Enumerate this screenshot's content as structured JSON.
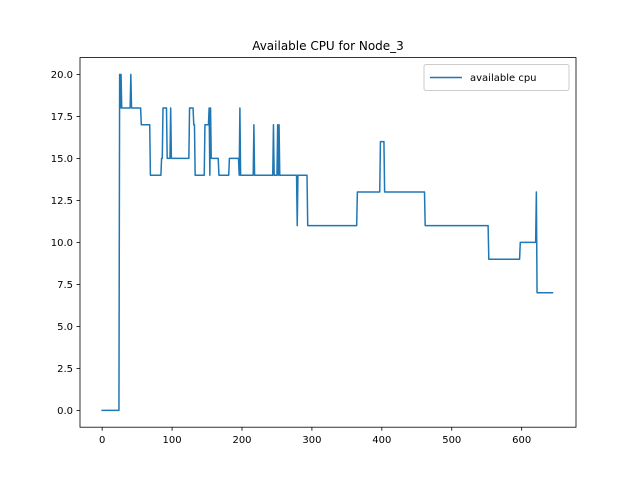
{
  "chart_data": {
    "type": "line",
    "title": "Available CPU for Node_3",
    "xlabel": "",
    "ylabel": "",
    "xlim": [
      -31.7,
      677.7
    ],
    "ylim": [
      -1.0,
      21.0
    ],
    "xticks": [
      0,
      100,
      200,
      300,
      400,
      500,
      600
    ],
    "yticks": [
      0.0,
      2.5,
      5.0,
      7.5,
      10.0,
      12.5,
      15.0,
      17.5,
      20.0
    ],
    "xtick_labels": [
      "0",
      "100",
      "200",
      "300",
      "400",
      "500",
      "600"
    ],
    "ytick_labels": [
      "0.0",
      "2.5",
      "5.0",
      "7.5",
      "10.0",
      "12.5",
      "15.0",
      "17.5",
      "20.0"
    ],
    "grid": false,
    "legend_position": "top-right",
    "series": [
      {
        "name": "available cpu",
        "color": "#1f77b4",
        "x": [
          0,
          24,
          25,
          26,
          27,
          28,
          40,
          41,
          42,
          55,
          56,
          68,
          69,
          75,
          76,
          84,
          85,
          86,
          87,
          92,
          93,
          94,
          97,
          98,
          99,
          100,
          124,
          125,
          130,
          131,
          132,
          133,
          134,
          135,
          146,
          147,
          152,
          153,
          154,
          155,
          156,
          157,
          166,
          167,
          181,
          182,
          195,
          196,
          197,
          198,
          203,
          204,
          216,
          217,
          218,
          219,
          220,
          244,
          245,
          246,
          247,
          250,
          251,
          252,
          253,
          254,
          255,
          278,
          279,
          280,
          281,
          282,
          293,
          294,
          364,
          365,
          397,
          398,
          403,
          404,
          461,
          462,
          552,
          553,
          597,
          598,
          620,
          621,
          622,
          623,
          644
        ],
        "y": [
          0,
          0,
          20,
          18,
          20,
          18,
          18,
          20,
          18,
          18,
          17,
          17,
          14,
          14,
          14,
          14,
          15,
          15,
          18,
          18,
          15,
          15,
          15,
          18,
          15,
          15,
          15,
          18,
          18,
          17,
          17,
          14,
          14,
          14,
          14,
          17,
          17,
          18,
          14,
          18,
          15,
          15,
          15,
          14,
          14,
          15,
          15,
          14,
          18,
          14,
          14,
          14,
          14,
          17,
          14,
          14,
          14,
          14,
          17,
          14,
          14,
          14,
          17,
          14,
          17,
          14,
          14,
          14,
          11,
          14,
          14,
          14,
          14,
          11,
          11,
          13,
          13,
          16,
          16,
          13,
          13,
          11,
          11,
          9,
          9,
          10,
          10,
          13,
          7,
          7,
          7
        ]
      }
    ]
  }
}
